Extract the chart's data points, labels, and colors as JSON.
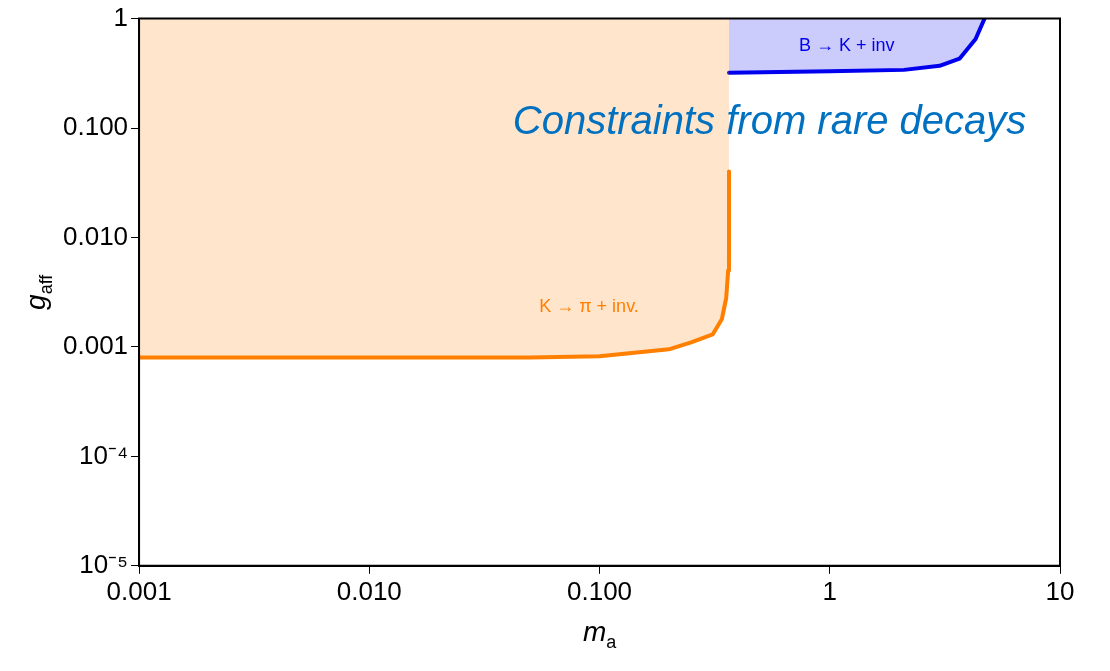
{
  "chart_data": {
    "type": "area",
    "title": "Constraints from rare decays",
    "xlabel": "m$_{a}$",
    "ylabel": "g$_{aff}$",
    "log": "xy",
    "grid": false,
    "legend": false,
    "marker": "none",
    "line_style": "solid",
    "xlim": [
      0.001,
      10
    ],
    "xticks": [
      {
        "value": 0.001,
        "label": "0.001"
      },
      {
        "value": 0.01,
        "label": "0.010"
      },
      {
        "value": 0.1,
        "label": "0.100"
      },
      1,
      10
    ],
    "ylim": [
      1e-05,
      1
    ],
    "yticks": [
      {
        "value": 1e-05,
        "label": "10⁻⁵"
      },
      {
        "value": 0.0001,
        "label": "10⁻⁴"
      },
      {
        "value": 0.001,
        "label": "0.001"
      },
      {
        "value": 0.01,
        "label": "0.010"
      },
      {
        "value": 0.1,
        "label": "0.100"
      },
      1
    ],
    "series": [
      {
        "name": "K → π + inv.",
        "color": "#ff7f00",
        "x": [
          0.001,
          0.001,
          0.01,
          0.05,
          0.1,
          0.2,
          0.25,
          0.31,
          0.34,
          0.355,
          0.362,
          0.365,
          0.365
        ],
        "values": [
          1,
          0.0008,
          0.0008,
          0.0008,
          0.00082,
          0.00095,
          0.0011,
          0.0013,
          0.0018,
          0.0028,
          0.005,
          0.04,
          1
        ]
      },
      {
        "name": "B → K + inv",
        "color": "#0000ee",
        "x": [
          0.365,
          0.365,
          1,
          2.1,
          3,
          3.66,
          4.3,
          4.7
        ],
        "values": [
          1,
          0.32,
          0.33,
          0.34,
          0.37,
          0.43,
          0.65,
          1
        ]
      }
    ]
  }
}
